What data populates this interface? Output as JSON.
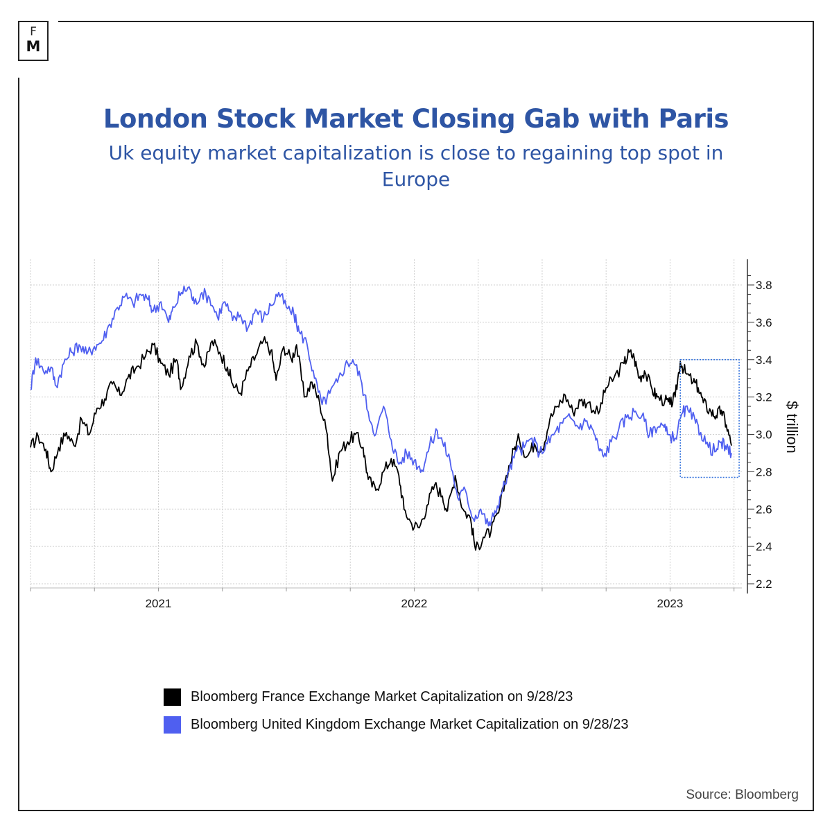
{
  "brand": {
    "letter_top": "F",
    "letter_bottom": "M"
  },
  "title": "London Stock Market Closing Gab with Paris",
  "subtitle": "Uk equity market capitalization is close to regaining top spot in Europe",
  "source": "Source:  Bloomberg",
  "colors": {
    "title": "#2e55a4",
    "france": "#000000",
    "uk": "#4f5ff0",
    "highlight": "#2f6fdc"
  },
  "chart_data": {
    "type": "line",
    "ylabel": "$ trillion",
    "ylim": [
      2.2,
      3.9
    ],
    "yticks": [
      2.2,
      2.4,
      2.6,
      2.8,
      3.0,
      3.2,
      3.4,
      3.6,
      3.8
    ],
    "xlim": [
      2020.5,
      2023.25
    ],
    "xticks": [
      {
        "x": 2021,
        "label": "2021"
      },
      {
        "x": 2022,
        "label": "2022"
      },
      {
        "x": 2023,
        "label": "2023"
      }
    ],
    "highlight_box": {
      "x": [
        2023.04,
        2023.27
      ],
      "y": [
        2.77,
        3.4
      ]
    },
    "series": [
      {
        "name": "Bloomberg France Exchange Market Capitalization on 9/28/23",
        "color": "#000000",
        "points": [
          [
            2020.5,
            2.93
          ],
          [
            2020.53,
            2.99
          ],
          [
            2020.56,
            2.92
          ],
          [
            2020.58,
            2.8
          ],
          [
            2020.61,
            2.93
          ],
          [
            2020.64,
            3.01
          ],
          [
            2020.67,
            2.94
          ],
          [
            2020.7,
            3.08
          ],
          [
            2020.73,
            3.0
          ],
          [
            2020.76,
            3.14
          ],
          [
            2020.79,
            3.19
          ],
          [
            2020.82,
            3.27
          ],
          [
            2020.85,
            3.21
          ],
          [
            2020.88,
            3.3
          ],
          [
            2020.91,
            3.35
          ],
          [
            2020.95,
            3.42
          ],
          [
            2020.98,
            3.48
          ],
          [
            2021.01,
            3.38
          ],
          [
            2021.04,
            3.32
          ],
          [
            2021.07,
            3.4
          ],
          [
            2021.09,
            3.25
          ],
          [
            2021.12,
            3.42
          ],
          [
            2021.15,
            3.49
          ],
          [
            2021.18,
            3.36
          ],
          [
            2021.21,
            3.5
          ],
          [
            2021.24,
            3.44
          ],
          [
            2021.27,
            3.36
          ],
          [
            2021.29,
            3.27
          ],
          [
            2021.32,
            3.22
          ],
          [
            2021.35,
            3.34
          ],
          [
            2021.38,
            3.42
          ],
          [
            2021.41,
            3.5
          ],
          [
            2021.44,
            3.45
          ],
          [
            2021.46,
            3.29
          ],
          [
            2021.49,
            3.47
          ],
          [
            2021.52,
            3.4
          ],
          [
            2021.54,
            3.48
          ],
          [
            2021.57,
            3.2
          ],
          [
            2021.6,
            3.28
          ],
          [
            2021.63,
            3.17
          ],
          [
            2021.66,
            3.0
          ],
          [
            2021.68,
            2.75
          ],
          [
            2021.71,
            2.91
          ],
          [
            2021.74,
            2.96
          ],
          [
            2021.77,
            3.0
          ],
          [
            2021.8,
            2.93
          ],
          [
            2021.82,
            2.76
          ],
          [
            2021.85,
            2.7
          ],
          [
            2021.88,
            2.8
          ],
          [
            2021.91,
            2.87
          ],
          [
            2021.94,
            2.78
          ],
          [
            2021.96,
            2.6
          ],
          [
            2021.99,
            2.52
          ],
          [
            2022.02,
            2.5
          ],
          [
            2022.05,
            2.62
          ],
          [
            2022.08,
            2.73
          ],
          [
            2022.11,
            2.67
          ],
          [
            2022.13,
            2.59
          ],
          [
            2022.16,
            2.78
          ],
          [
            2022.19,
            2.6
          ],
          [
            2022.22,
            2.55
          ],
          [
            2022.24,
            2.38
          ],
          [
            2022.27,
            2.45
          ],
          [
            2022.3,
            2.48
          ],
          [
            2022.33,
            2.58
          ],
          [
            2022.36,
            2.78
          ],
          [
            2022.39,
            2.92
          ],
          [
            2022.41,
            2.98
          ],
          [
            2022.44,
            2.88
          ],
          [
            2022.47,
            2.95
          ],
          [
            2022.5,
            2.92
          ],
          [
            2022.53,
            3.08
          ],
          [
            2022.56,
            3.15
          ],
          [
            2022.59,
            3.21
          ],
          [
            2022.62,
            3.12
          ],
          [
            2022.65,
            3.18
          ],
          [
            2022.68,
            3.17
          ],
          [
            2022.72,
            3.11
          ],
          [
            2022.75,
            3.25
          ],
          [
            2022.78,
            3.3
          ],
          [
            2022.82,
            3.38
          ],
          [
            2022.84,
            3.44
          ],
          [
            2022.86,
            3.41
          ],
          [
            2022.88,
            3.3
          ],
          [
            2022.9,
            3.34
          ],
          [
            2022.93,
            3.24
          ],
          [
            2022.95,
            3.2
          ],
          [
            2022.98,
            3.18
          ],
          [
            2023.0,
            3.16
          ],
          [
            2023.02,
            3.2
          ],
          [
            2023.04,
            3.39
          ],
          [
            2023.06,
            3.33
          ],
          [
            2023.09,
            3.28
          ],
          [
            2023.11,
            3.25
          ],
          [
            2023.13,
            3.17
          ],
          [
            2023.16,
            3.12
          ],
          [
            2023.18,
            3.1
          ],
          [
            2023.2,
            3.13
          ],
          [
            2023.22,
            3.05
          ],
          [
            2023.24,
            2.94
          ]
        ]
      },
      {
        "name": "Bloomberg United Kingdom Exchange Market Capitalization on 9/28/23",
        "color": "#4f5ff0",
        "points": [
          [
            2020.5,
            3.24
          ],
          [
            2020.52,
            3.41
          ],
          [
            2020.55,
            3.34
          ],
          [
            2020.58,
            3.36
          ],
          [
            2020.6,
            3.26
          ],
          [
            2020.63,
            3.38
          ],
          [
            2020.66,
            3.44
          ],
          [
            2020.69,
            3.48
          ],
          [
            2020.72,
            3.43
          ],
          [
            2020.75,
            3.47
          ],
          [
            2020.78,
            3.5
          ],
          [
            2020.81,
            3.59
          ],
          [
            2020.84,
            3.68
          ],
          [
            2020.87,
            3.74
          ],
          [
            2020.9,
            3.7
          ],
          [
            2020.93,
            3.75
          ],
          [
            2020.96,
            3.72
          ],
          [
            2020.98,
            3.66
          ],
          [
            2021.01,
            3.71
          ],
          [
            2021.04,
            3.6
          ],
          [
            2021.06,
            3.68
          ],
          [
            2021.09,
            3.76
          ],
          [
            2021.12,
            3.79
          ],
          [
            2021.14,
            3.7
          ],
          [
            2021.17,
            3.76
          ],
          [
            2021.2,
            3.73
          ],
          [
            2021.23,
            3.63
          ],
          [
            2021.26,
            3.71
          ],
          [
            2021.29,
            3.61
          ],
          [
            2021.32,
            3.64
          ],
          [
            2021.35,
            3.57
          ],
          [
            2021.38,
            3.67
          ],
          [
            2021.41,
            3.62
          ],
          [
            2021.44,
            3.69
          ],
          [
            2021.47,
            3.76
          ],
          [
            2021.5,
            3.68
          ],
          [
            2021.53,
            3.64
          ],
          [
            2021.55,
            3.55
          ],
          [
            2021.58,
            3.49
          ],
          [
            2021.61,
            3.3
          ],
          [
            2021.64,
            3.16
          ],
          [
            2021.67,
            3.22
          ],
          [
            2021.7,
            3.28
          ],
          [
            2021.73,
            3.37
          ],
          [
            2021.76,
            3.4
          ],
          [
            2021.79,
            3.3
          ],
          [
            2021.82,
            3.12
          ],
          [
            2021.85,
            3.0
          ],
          [
            2021.88,
            3.15
          ],
          [
            2021.91,
            2.97
          ],
          [
            2021.94,
            2.84
          ],
          [
            2021.97,
            2.9
          ],
          [
            2022.0,
            2.86
          ],
          [
            2022.03,
            2.81
          ],
          [
            2022.06,
            2.94
          ],
          [
            2022.09,
            3.02
          ],
          [
            2022.11,
            2.96
          ],
          [
            2022.14,
            2.86
          ],
          [
            2022.17,
            2.66
          ],
          [
            2022.2,
            2.7
          ],
          [
            2022.23,
            2.55
          ],
          [
            2022.26,
            2.6
          ],
          [
            2022.29,
            2.51
          ],
          [
            2022.31,
            2.56
          ],
          [
            2022.34,
            2.68
          ],
          [
            2022.37,
            2.8
          ],
          [
            2022.4,
            2.91
          ],
          [
            2022.43,
            2.93
          ],
          [
            2022.46,
            2.98
          ],
          [
            2022.49,
            2.9
          ],
          [
            2022.52,
            2.95
          ],
          [
            2022.55,
            3.01
          ],
          [
            2022.58,
            3.06
          ],
          [
            2022.61,
            3.09
          ],
          [
            2022.64,
            3.04
          ],
          [
            2022.67,
            3.07
          ],
          [
            2022.7,
            3.02
          ],
          [
            2022.72,
            2.93
          ],
          [
            2022.74,
            2.88
          ],
          [
            2022.77,
            2.96
          ],
          [
            2022.8,
            3.03
          ],
          [
            2022.83,
            3.09
          ],
          [
            2022.86,
            3.12
          ],
          [
            2022.89,
            3.1
          ],
          [
            2022.92,
            3.0
          ],
          [
            2022.94,
            3.04
          ],
          [
            2022.97,
            3.05
          ],
          [
            2022.99,
            3.0
          ],
          [
            2023.02,
            2.98
          ],
          [
            2023.05,
            3.12
          ],
          [
            2023.07,
            3.13
          ],
          [
            2023.1,
            3.06
          ],
          [
            2023.12,
            3.01
          ],
          [
            2023.15,
            2.93
          ],
          [
            2023.18,
            2.91
          ],
          [
            2023.2,
            2.96
          ],
          [
            2023.22,
            2.92
          ],
          [
            2023.24,
            2.9
          ]
        ]
      }
    ]
  }
}
